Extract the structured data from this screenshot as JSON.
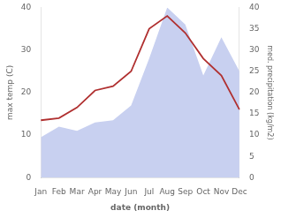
{
  "chart_data": {
    "type": "line",
    "categories": [
      "Jan",
      "Feb",
      "Mar",
      "Apr",
      "May",
      "Jun",
      "Jul",
      "Aug",
      "Sep",
      "Oct",
      "Nov",
      "Dec"
    ],
    "series": [
      {
        "type": "area",
        "color": "#c8d0f0",
        "axis": "y2",
        "values": [
          9.5,
          12.0,
          11.0,
          13.0,
          13.5,
          17.0,
          28.0,
          40.0,
          36.0,
          24.0,
          33.0,
          25.0
        ]
      },
      {
        "type": "line",
        "color": "#b03030",
        "values": [
          13.5,
          14.0,
          16.5,
          20.5,
          21.5,
          25.0,
          35.0,
          38.0,
          34.0,
          28.0,
          24.0,
          16.0
        ]
      }
    ],
    "xlabel": "date (month)",
    "ylabel": "max temp (C)",
    "y2label": "med. precipitation (kg/m2)",
    "ylim": [
      0,
      40
    ],
    "yticks": [
      0,
      10,
      20,
      30,
      40
    ],
    "y2lim": [
      0,
      40
    ],
    "y2ticks": [
      0,
      5,
      10,
      15,
      20,
      25,
      30,
      35,
      40
    ],
    "grid": false
  }
}
